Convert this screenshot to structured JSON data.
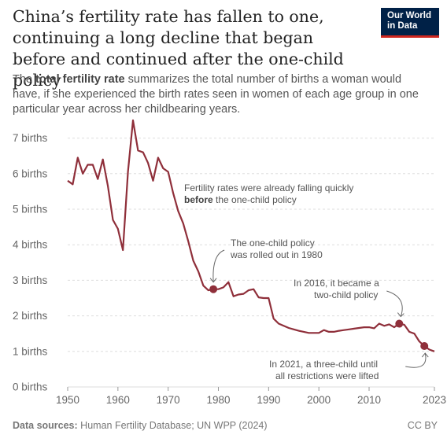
{
  "header": {
    "title": "China’s fertility rate has fallen to one, continuing a long decline that began before and continued after the one-child policy",
    "subtitle_pre": "The ",
    "subtitle_bold": "total fertility rate",
    "subtitle_post": " summarizes the total number of births a woman would have, if she experienced the birth rates seen in women of each age group in one particular year across her childbearing years.",
    "logo_line1": "Our World",
    "logo_line2": "in Data"
  },
  "footer": {
    "sources_label": "Data sources:",
    "sources_text": "Human Fertility Database; UN WPP (2024)",
    "license": "CC BY"
  },
  "colors": {
    "series": "#8f2f3a",
    "grid": "#dddddd",
    "axis_text": "#666666"
  },
  "chart_data": {
    "type": "line",
    "title": "China’s fertility rate has fallen to one, continuing a long decline that began before and continued after the one-child policy",
    "xlim": [
      1950,
      2023
    ],
    "ylim": [
      0,
      7.5
    ],
    "x_ticks": [
      1950,
      1960,
      1970,
      1980,
      1990,
      2000,
      2010,
      2023
    ],
    "y_ticks": [
      0,
      1,
      2,
      3,
      4,
      5,
      6,
      7
    ],
    "y_tick_labels": [
      "0 births",
      "1 births",
      "2 births",
      "3 births",
      "4 births",
      "5 births",
      "6 births",
      "7 births"
    ],
    "grid": true,
    "series": [
      {
        "x": [
          1950,
          1951,
          1952,
          1953,
          1954,
          1955,
          1956,
          1957,
          1958,
          1959,
          1960,
          1961,
          1962,
          1963,
          1964,
          1965,
          1966,
          1967,
          1968,
          1969,
          1970,
          1971,
          1972,
          1973,
          1974,
          1975,
          1976,
          1977,
          1978,
          1979,
          1980,
          1981,
          1982,
          1983,
          1984,
          1985,
          1986,
          1987,
          1988,
          1989,
          1990,
          1991,
          1992,
          1993,
          1994,
          1995,
          1996,
          1997,
          1998,
          1999,
          2000,
          2001,
          2002,
          2003,
          2004,
          2005,
          2006,
          2007,
          2008,
          2009,
          2010,
          2011,
          2012,
          2013,
          2014,
          2015,
          2016,
          2017,
          2018,
          2019,
          2020,
          2021,
          2022,
          2023
        ],
        "values": [
          5.8,
          5.7,
          6.45,
          6.0,
          6.25,
          6.25,
          5.85,
          6.4,
          5.65,
          4.7,
          4.45,
          3.85,
          6.05,
          7.5,
          6.65,
          6.6,
          6.3,
          5.8,
          6.45,
          6.15,
          6.05,
          5.45,
          4.95,
          4.6,
          4.1,
          3.55,
          3.25,
          2.85,
          2.72,
          2.75,
          2.75,
          2.8,
          2.95,
          2.55,
          2.6,
          2.62,
          2.72,
          2.75,
          2.52,
          2.5,
          2.5,
          1.92,
          1.78,
          1.72,
          1.66,
          1.62,
          1.58,
          1.55,
          1.52,
          1.52,
          1.52,
          1.6,
          1.55,
          1.55,
          1.58,
          1.6,
          1.62,
          1.64,
          1.66,
          1.68,
          1.68,
          1.65,
          1.78,
          1.72,
          1.76,
          1.68,
          1.78,
          1.75,
          1.55,
          1.5,
          1.28,
          1.15,
          1.05,
          1.0
        ]
      }
    ],
    "highlights": [
      {
        "x": 1979,
        "y": 2.75
      },
      {
        "x": 2016,
        "y": 1.78
      },
      {
        "x": 2021,
        "y": 1.15
      }
    ],
    "annotations": [
      {
        "lines": [
          "Fertility rates were already falling quickly"
        ],
        "bold_line": [
          "before",
          " the one-child policy"
        ]
      },
      {
        "lines": [
          "The one-child policy",
          "was rolled out in 1980"
        ]
      },
      {
        "lines": [
          "In 2016, it became a",
          "two-child policy"
        ]
      },
      {
        "lines": [
          "In 2021, a three-child until",
          "all restrictions were lifted"
        ]
      }
    ]
  }
}
